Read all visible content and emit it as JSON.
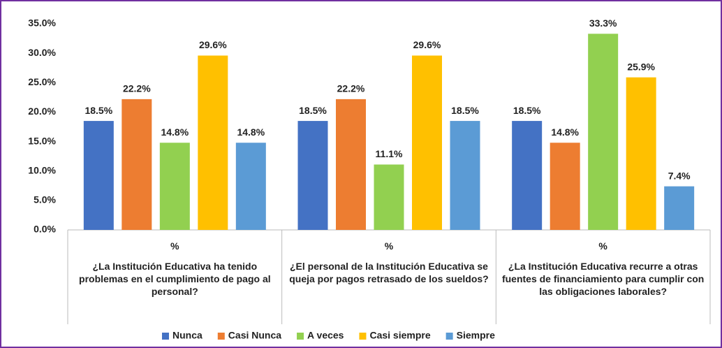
{
  "chart_data": {
    "type": "bar",
    "categories": [
      "¿La Institución Educativa ha tenido problemas en el cumplimiento de pago al personal?",
      "¿El personal de la Institución Educativa se queja por pagos retrasado de los sueldos?",
      "¿La Institución Educativa recurre a otras fuentes de financiamiento para cumplir con las obligaciones laborales?"
    ],
    "subcategories": [
      "%",
      "%",
      "%"
    ],
    "series": [
      {
        "name": "Nunca",
        "color": "#4472c4",
        "values": [
          18.5,
          18.5,
          18.5
        ],
        "value_labels": [
          "18.5%",
          "18.5%",
          "18.5%"
        ]
      },
      {
        "name": "Casi Nunca",
        "color": "#ed7d31",
        "values": [
          22.2,
          22.2,
          14.8
        ],
        "value_labels": [
          "22.2%",
          "22.2%",
          "14.8%"
        ]
      },
      {
        "name": "A veces",
        "color": "#92d050",
        "values": [
          14.8,
          11.1,
          33.3
        ],
        "value_labels": [
          "14.8%",
          "11.1%",
          "33.3%"
        ]
      },
      {
        "name": "Casi siempre",
        "color": "#ffc000",
        "values": [
          29.6,
          29.6,
          25.9
        ],
        "value_labels": [
          "29.6%",
          "29.6%",
          "25.9%"
        ]
      },
      {
        "name": "Siempre",
        "color": "#5b9bd5",
        "values": [
          14.8,
          18.5,
          7.4
        ],
        "value_labels": [
          "14.8%",
          "18.5%",
          "7.4%"
        ]
      }
    ],
    "ylim": [
      0,
      35
    ],
    "yticks": [
      {
        "value": 0,
        "label": "0.0%"
      },
      {
        "value": 5,
        "label": "5.0%"
      },
      {
        "value": 10,
        "label": "10.0%"
      },
      {
        "value": 15,
        "label": "15.0%"
      },
      {
        "value": 20,
        "label": "20.0%"
      },
      {
        "value": 25,
        "label": "25.0%"
      },
      {
        "value": 30,
        "label": "30.0%"
      },
      {
        "value": 35,
        "label": "35.0%"
      }
    ],
    "grid": false,
    "legend": "bottom"
  }
}
